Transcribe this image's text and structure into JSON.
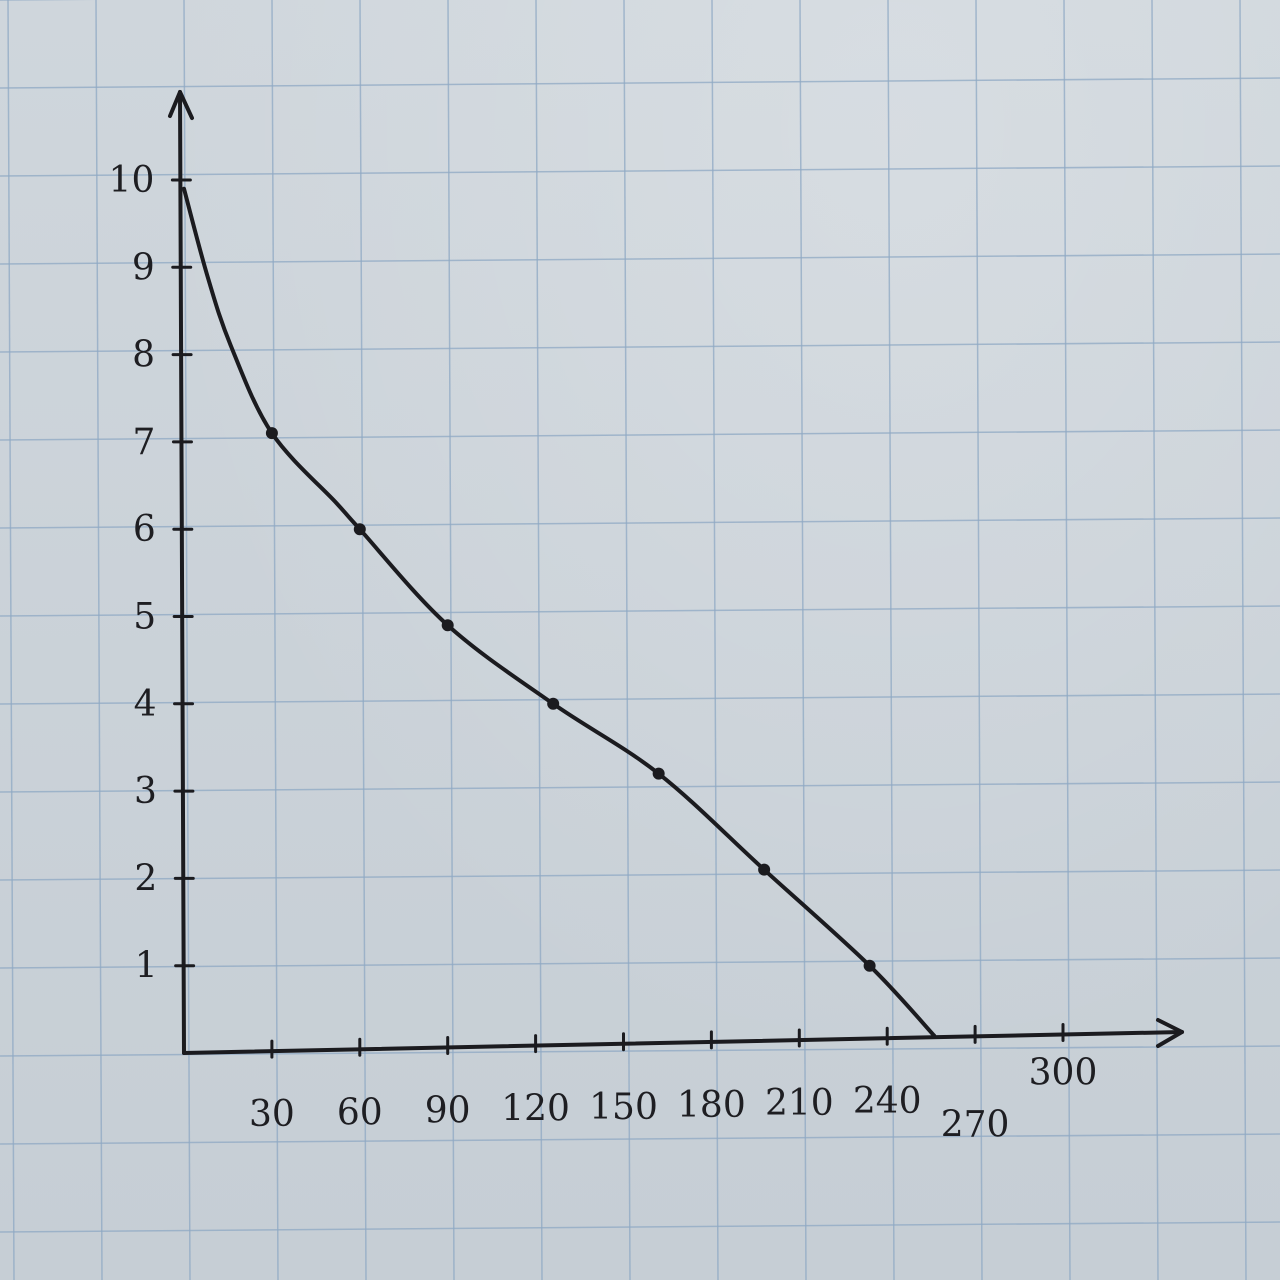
{
  "chart_data": {
    "type": "line",
    "title": "",
    "xlabel": "",
    "ylabel": "",
    "xlim": [
      0,
      310
    ],
    "ylim": [
      0,
      10.6
    ],
    "grid": true,
    "x_ticks": [
      30,
      60,
      90,
      120,
      150,
      180,
      210,
      240,
      270,
      300
    ],
    "x_tick_labels": [
      "30",
      "60",
      "90",
      "120",
      "150",
      "180",
      "210",
      "240",
      "270",
      "300"
    ],
    "y_ticks": [
      1,
      2,
      3,
      4,
      5,
      6,
      7,
      8,
      9,
      10
    ],
    "y_tick_labels": [
      "1",
      "2",
      "3",
      "4",
      "5",
      "6",
      "7",
      "8",
      "9",
      "10"
    ],
    "series": [
      {
        "x": [
          0,
          8,
          16,
          30,
          52,
          60,
          90,
          126,
          162,
          198,
          234,
          256
        ],
        "y": [
          9.9,
          8.9,
          8.1,
          7.1,
          6.3,
          6.0,
          4.9,
          4.0,
          3.2,
          2.1,
          1.0,
          0.2
        ],
        "markers_x": [
          30,
          60,
          90,
          126,
          162,
          198,
          234
        ],
        "markers_y": [
          7.1,
          6.0,
          4.9,
          4.0,
          3.2,
          2.1,
          1.0
        ]
      }
    ]
  }
}
